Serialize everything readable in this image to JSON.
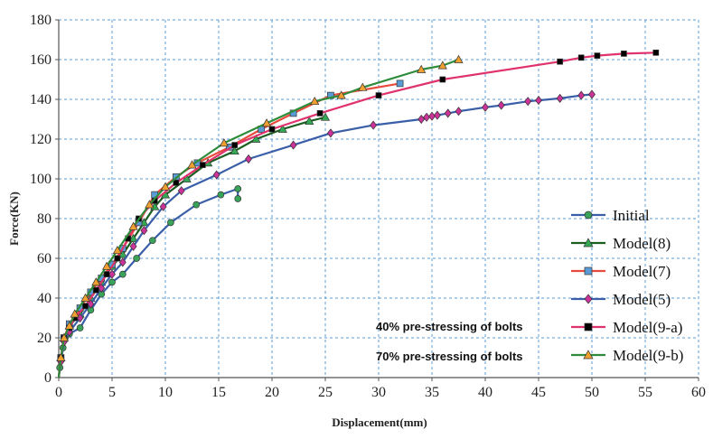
{
  "chart_data": {
    "type": "line",
    "title": "",
    "xlabel": "Displacement(mm)",
    "ylabel": "Force(KN)",
    "xlim": [
      0,
      60
    ],
    "ylim": [
      0,
      180
    ],
    "xticks": [
      "0",
      "5",
      "10",
      "15",
      "20",
      "25",
      "30",
      "35",
      "40",
      "45",
      "50",
      "55",
      "60"
    ],
    "yticks": [
      "0",
      "20",
      "40",
      "60",
      "80",
      "100",
      "120",
      "140",
      "160",
      "180"
    ],
    "grid": true,
    "legend_position": "bottom-right",
    "annotations": [
      "40% pre-stressing of bolts",
      "70% pre-stressing of bolts"
    ],
    "series": [
      {
        "name": "Initial",
        "color": "#3a5fa8",
        "marker": "circle",
        "marker_color": "#3aa35a",
        "x": [
          0,
          0.1,
          0.2,
          0.4,
          0.6,
          1.0,
          2.0,
          3.0,
          4.0,
          5.0,
          6.0,
          7.3,
          8.8,
          10.5,
          12.9,
          15.2,
          16.8,
          16.8
        ],
        "y": [
          0,
          5,
          10,
          15,
          20,
          22,
          25,
          34,
          42,
          48,
          52,
          60,
          69,
          78,
          87,
          92,
          95,
          90
        ]
      },
      {
        "name": "Model(8)",
        "color": "#1b5e20",
        "marker": "triangle",
        "marker_color": "#34a853",
        "x": [
          0,
          0.2,
          0.5,
          1.0,
          2.0,
          3.0,
          4.0,
          5.0,
          6.0,
          7.0,
          8.0,
          9.0,
          10.0,
          12.0,
          14.0,
          16.5,
          18.5,
          21.0,
          23.5,
          25.0
        ],
        "y": [
          0,
          10,
          20,
          26,
          32,
          40,
          48,
          56,
          62,
          70,
          78,
          86,
          92,
          100,
          108,
          114,
          120,
          125,
          129,
          131
        ]
      },
      {
        "name": "Model(7)",
        "color": "#e84b3c",
        "marker": "square",
        "marker_color": "#5b9bd5",
        "x": [
          0,
          0.2,
          0.5,
          1.0,
          2.0,
          3.0,
          4.0,
          5.0,
          6.0,
          7.5,
          9.0,
          11.0,
          13.0,
          16.0,
          19.0,
          22.0,
          25.5,
          32.0
        ],
        "y": [
          0,
          10,
          20,
          27,
          35,
          43,
          50,
          57,
          65,
          78,
          92,
          101,
          108,
          116,
          125,
          133,
          142,
          148
        ]
      },
      {
        "name": "Model(5)",
        "color": "#3a5fa8",
        "marker": "diamond",
        "marker_color": "#cc3399",
        "x": [
          0,
          0.2,
          0.5,
          1.0,
          2.0,
          3.0,
          4.0,
          5.0,
          6.0,
          7.0,
          8.0,
          9.8,
          11.5,
          14.8,
          17.8,
          22.0,
          25.5,
          29.5,
          34.0,
          34.5,
          35.0,
          35.5,
          36.5,
          37.5,
          40.0,
          41.5,
          44.0,
          45.0,
          47.0,
          49.0,
          50.0
        ],
        "y": [
          0,
          8,
          18,
          23,
          30,
          37,
          45,
          52,
          58,
          66,
          74,
          86,
          94,
          102,
          110,
          117,
          123,
          127,
          130,
          131,
          131.5,
          132,
          133,
          134,
          136,
          137,
          139,
          139.5,
          140.5,
          142,
          142.5
        ]
      },
      {
        "name": "Model(9-a)",
        "color": "#e0326b",
        "marker": "square",
        "marker_color": "#000000",
        "x": [
          0,
          0.2,
          0.5,
          1.0,
          1.5,
          2.5,
          3.5,
          4.5,
          5.5,
          6.5,
          7.5,
          9.0,
          11.0,
          13.5,
          16.5,
          20.0,
          24.5,
          30.0,
          36.0,
          47.0,
          49.0,
          50.5,
          53.0,
          56.0
        ],
        "y": [
          0,
          10,
          20,
          25,
          30,
          36,
          44,
          52,
          60,
          70,
          80,
          89,
          98,
          107,
          117,
          125,
          133,
          142,
          150,
          159,
          161,
          162,
          163,
          163.5
        ]
      },
      {
        "name": "Model(9-b)",
        "color": "#2e8b3a",
        "marker": "triangle",
        "marker_color": "#f0a030",
        "x": [
          0,
          0.2,
          0.5,
          1.0,
          1.5,
          2.5,
          3.5,
          4.5,
          5.5,
          7.0,
          8.5,
          10.0,
          12.5,
          15.5,
          19.5,
          24.0,
          26.5,
          28.5,
          34.0,
          36.0,
          37.5
        ],
        "y": [
          0,
          10,
          20,
          26,
          32,
          40,
          48,
          56,
          64,
          76,
          87,
          96,
          107,
          118,
          128,
          139,
          142,
          146,
          155,
          157,
          160
        ]
      }
    ]
  }
}
